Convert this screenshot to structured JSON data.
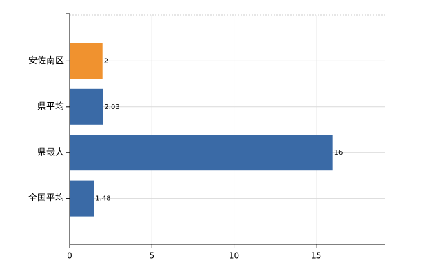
{
  "chart_data": {
    "type": "hbar",
    "categories": [
      "安佐南区",
      "県平均",
      "県最大",
      "全国平均"
    ],
    "values": [
      2,
      2.03,
      16,
      1.48
    ],
    "colors": [
      "#f0922f",
      "#3a6aa6",
      "#3a6aa6",
      "#3a6aa6"
    ],
    "xlim": [
      0,
      19.2
    ],
    "xticks": [
      0,
      5,
      10,
      15
    ],
    "grid": true
  }
}
